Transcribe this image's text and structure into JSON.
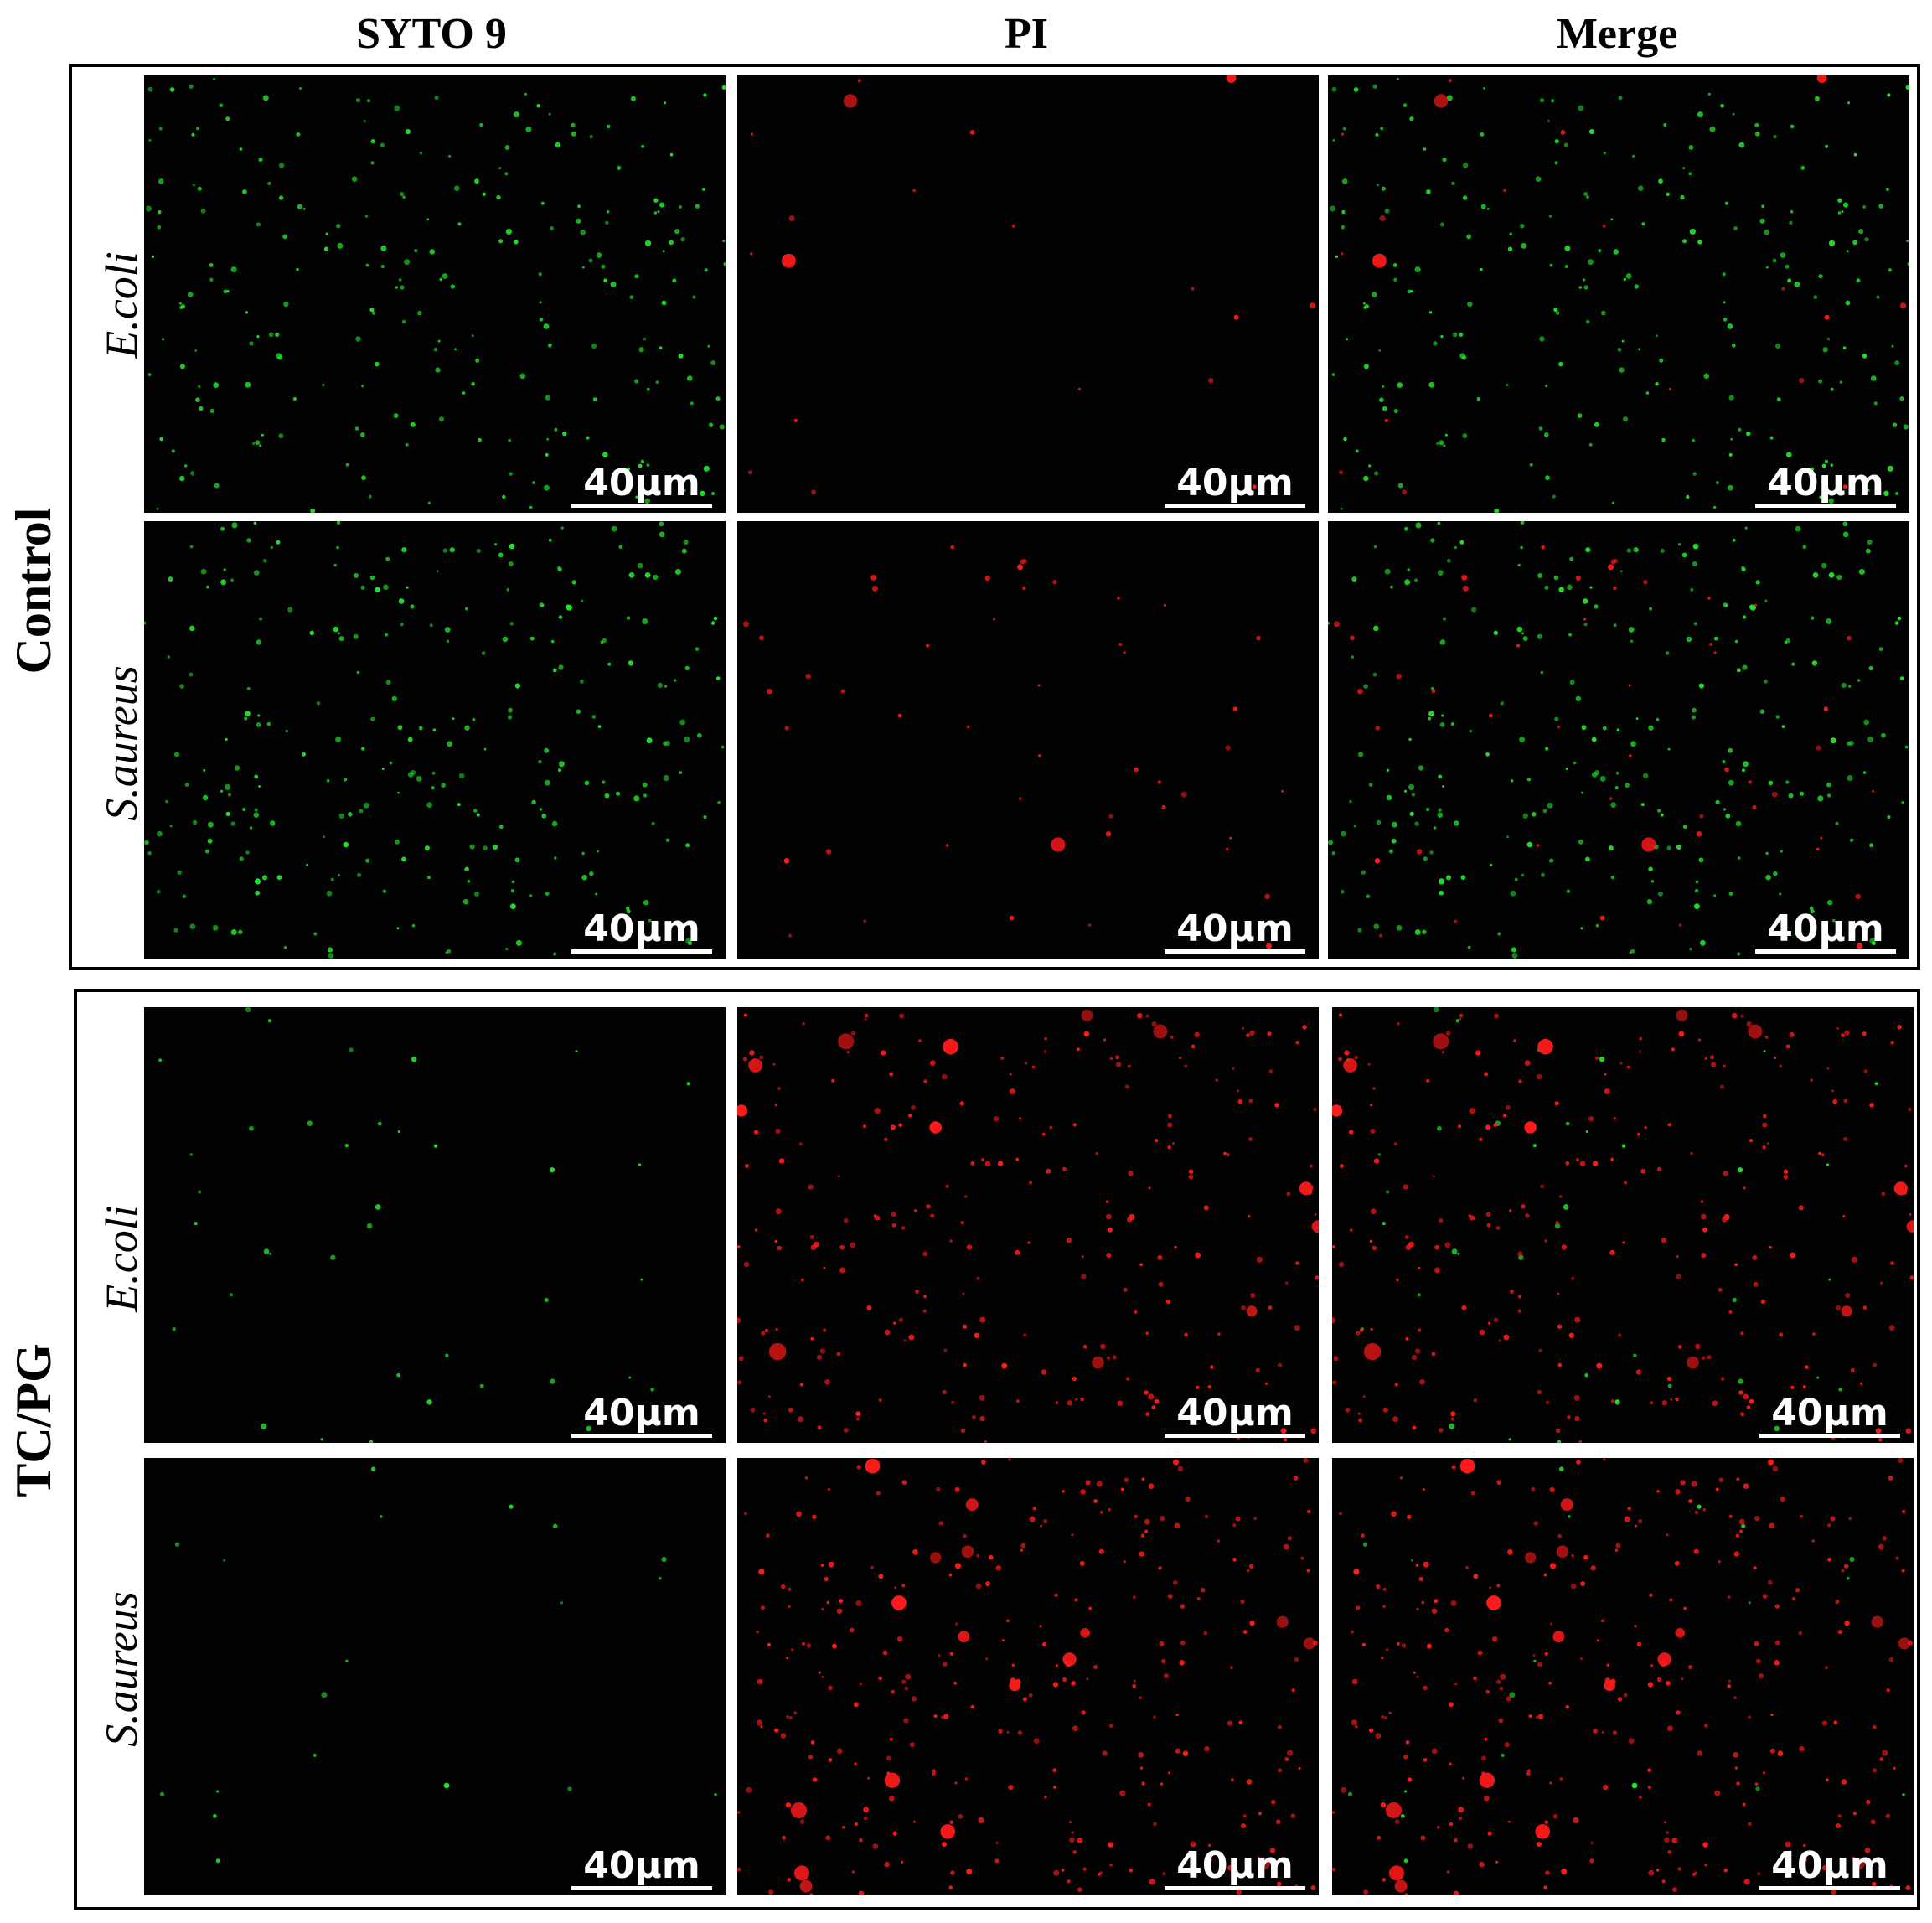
{
  "columns": {
    "syto9": "SYTO 9",
    "pi": "PI",
    "merge": "Merge"
  },
  "groups": {
    "control": "Control",
    "tcpg": "TC/PG"
  },
  "rows": {
    "ecoli": "E.coli",
    "saureus": "S.aureus"
  },
  "scale_bar": "40μm",
  "colors": {
    "live_stain": "#22e02a",
    "dead_stain": "#ff1a1a",
    "background": "#020202"
  },
  "fluorescence_levels": {
    "control_ecoli": {
      "green": 0.75,
      "red": 0.06
    },
    "control_saureus": {
      "green": 0.85,
      "red": 0.15
    },
    "tcpg_ecoli": {
      "green": 0.12,
      "red": 0.8
    },
    "tcpg_saureus": {
      "green": 0.06,
      "red": 0.95
    }
  }
}
